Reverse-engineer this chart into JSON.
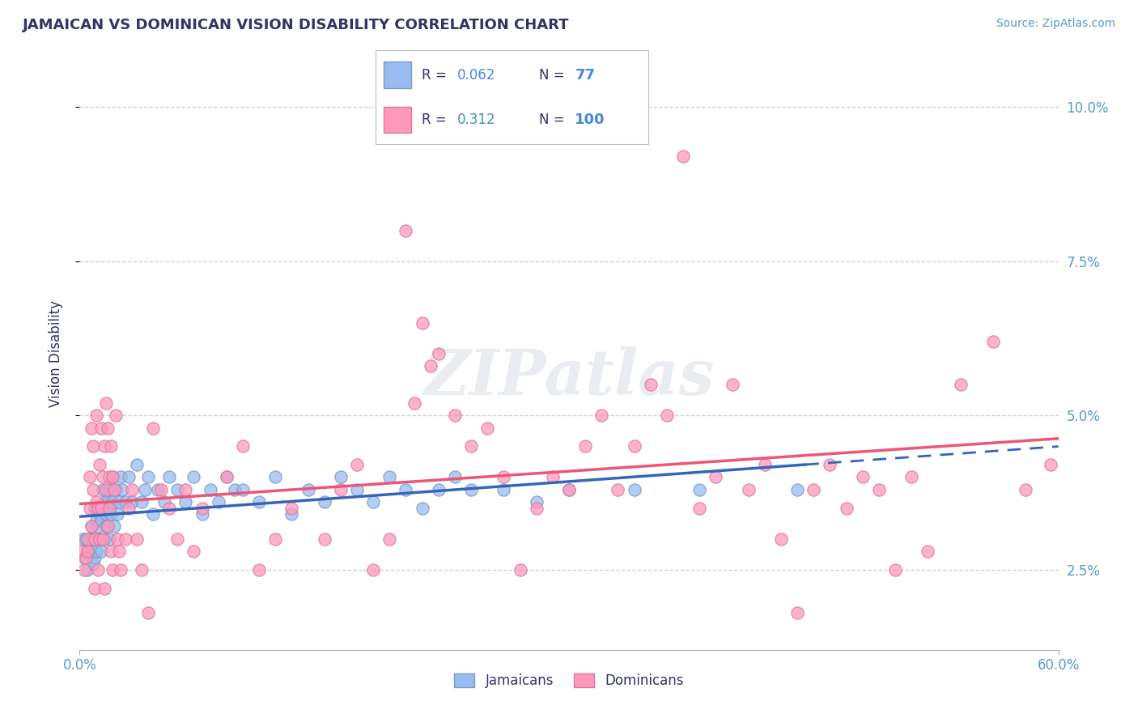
{
  "title": "JAMAICAN VS DOMINICAN VISION DISABILITY CORRELATION CHART",
  "source": "Source: ZipAtlas.com",
  "ylabel": "Vision Disability",
  "xlim": [
    0.0,
    0.6
  ],
  "ylim": [
    0.012,
    0.108
  ],
  "xtick_labels_edge": [
    "0.0%",
    "60.0%"
  ],
  "xtick_vals_edge": [
    0.0,
    0.6
  ],
  "ytick_labels": [
    "2.5%",
    "5.0%",
    "7.5%",
    "10.0%"
  ],
  "ytick_vals": [
    0.025,
    0.05,
    0.075,
    0.1
  ],
  "jamaican_color": "#99BBEE",
  "dominican_color": "#FF99BB",
  "jamaican_trend_color": "#3366BB",
  "dominican_trend_color": "#EE5577",
  "title_color": "#333366",
  "axis_label_color": "#5599CC",
  "watermark": "ZIPatlas",
  "background_color": "#FFFFFF",
  "grid_color": "#CCCCDD",
  "jamaican_scatter": [
    [
      0.002,
      0.03
    ],
    [
      0.003,
      0.027
    ],
    [
      0.004,
      0.03
    ],
    [
      0.005,
      0.028
    ],
    [
      0.005,
      0.025
    ],
    [
      0.006,
      0.03
    ],
    [
      0.006,
      0.028
    ],
    [
      0.007,
      0.032
    ],
    [
      0.007,
      0.028
    ],
    [
      0.008,
      0.026
    ],
    [
      0.008,
      0.03
    ],
    [
      0.009,
      0.035
    ],
    [
      0.009,
      0.027
    ],
    [
      0.01,
      0.033
    ],
    [
      0.01,
      0.028
    ],
    [
      0.011,
      0.032
    ],
    [
      0.012,
      0.03
    ],
    [
      0.012,
      0.034
    ],
    [
      0.013,
      0.028
    ],
    [
      0.013,
      0.033
    ],
    [
      0.014,
      0.038
    ],
    [
      0.015,
      0.03
    ],
    [
      0.015,
      0.036
    ],
    [
      0.016,
      0.034
    ],
    [
      0.016,
      0.032
    ],
    [
      0.017,
      0.036
    ],
    [
      0.018,
      0.03
    ],
    [
      0.018,
      0.038
    ],
    [
      0.019,
      0.034
    ],
    [
      0.02,
      0.036
    ],
    [
      0.02,
      0.04
    ],
    [
      0.021,
      0.032
    ],
    [
      0.022,
      0.038
    ],
    [
      0.023,
      0.034
    ],
    [
      0.024,
      0.036
    ],
    [
      0.025,
      0.04
    ],
    [
      0.026,
      0.038
    ],
    [
      0.028,
      0.036
    ],
    [
      0.03,
      0.04
    ],
    [
      0.032,
      0.036
    ],
    [
      0.035,
      0.042
    ],
    [
      0.038,
      0.036
    ],
    [
      0.04,
      0.038
    ],
    [
      0.042,
      0.04
    ],
    [
      0.045,
      0.034
    ],
    [
      0.048,
      0.038
    ],
    [
      0.052,
      0.036
    ],
    [
      0.055,
      0.04
    ],
    [
      0.06,
      0.038
    ],
    [
      0.065,
      0.036
    ],
    [
      0.07,
      0.04
    ],
    [
      0.075,
      0.034
    ],
    [
      0.08,
      0.038
    ],
    [
      0.085,
      0.036
    ],
    [
      0.09,
      0.04
    ],
    [
      0.095,
      0.038
    ],
    [
      0.1,
      0.038
    ],
    [
      0.11,
      0.036
    ],
    [
      0.12,
      0.04
    ],
    [
      0.13,
      0.034
    ],
    [
      0.14,
      0.038
    ],
    [
      0.15,
      0.036
    ],
    [
      0.16,
      0.04
    ],
    [
      0.17,
      0.038
    ],
    [
      0.18,
      0.036
    ],
    [
      0.19,
      0.04
    ],
    [
      0.2,
      0.038
    ],
    [
      0.21,
      0.035
    ],
    [
      0.22,
      0.038
    ],
    [
      0.23,
      0.04
    ],
    [
      0.24,
      0.038
    ],
    [
      0.26,
      0.038
    ],
    [
      0.28,
      0.036
    ],
    [
      0.3,
      0.038
    ],
    [
      0.34,
      0.038
    ],
    [
      0.38,
      0.038
    ],
    [
      0.44,
      0.038
    ]
  ],
  "dominican_scatter": [
    [
      0.002,
      0.028
    ],
    [
      0.003,
      0.025
    ],
    [
      0.004,
      0.027
    ],
    [
      0.005,
      0.028
    ],
    [
      0.005,
      0.03
    ],
    [
      0.006,
      0.04
    ],
    [
      0.006,
      0.035
    ],
    [
      0.007,
      0.048
    ],
    [
      0.007,
      0.032
    ],
    [
      0.008,
      0.038
    ],
    [
      0.008,
      0.045
    ],
    [
      0.009,
      0.03
    ],
    [
      0.009,
      0.022
    ],
    [
      0.01,
      0.036
    ],
    [
      0.01,
      0.05
    ],
    [
      0.011,
      0.035
    ],
    [
      0.011,
      0.025
    ],
    [
      0.012,
      0.042
    ],
    [
      0.012,
      0.03
    ],
    [
      0.013,
      0.048
    ],
    [
      0.013,
      0.035
    ],
    [
      0.014,
      0.04
    ],
    [
      0.014,
      0.03
    ],
    [
      0.015,
      0.045
    ],
    [
      0.015,
      0.022
    ],
    [
      0.016,
      0.052
    ],
    [
      0.016,
      0.038
    ],
    [
      0.017,
      0.032
    ],
    [
      0.017,
      0.048
    ],
    [
      0.018,
      0.04
    ],
    [
      0.018,
      0.035
    ],
    [
      0.019,
      0.028
    ],
    [
      0.019,
      0.045
    ],
    [
      0.02,
      0.04
    ],
    [
      0.02,
      0.025
    ],
    [
      0.021,
      0.038
    ],
    [
      0.022,
      0.05
    ],
    [
      0.023,
      0.03
    ],
    [
      0.024,
      0.028
    ],
    [
      0.025,
      0.025
    ],
    [
      0.028,
      0.03
    ],
    [
      0.03,
      0.035
    ],
    [
      0.032,
      0.038
    ],
    [
      0.035,
      0.03
    ],
    [
      0.038,
      0.025
    ],
    [
      0.042,
      0.018
    ],
    [
      0.045,
      0.048
    ],
    [
      0.05,
      0.038
    ],
    [
      0.055,
      0.035
    ],
    [
      0.06,
      0.03
    ],
    [
      0.065,
      0.038
    ],
    [
      0.07,
      0.028
    ],
    [
      0.075,
      0.035
    ],
    [
      0.09,
      0.04
    ],
    [
      0.1,
      0.045
    ],
    [
      0.11,
      0.025
    ],
    [
      0.12,
      0.03
    ],
    [
      0.13,
      0.035
    ],
    [
      0.15,
      0.03
    ],
    [
      0.16,
      0.038
    ],
    [
      0.17,
      0.042
    ],
    [
      0.18,
      0.025
    ],
    [
      0.19,
      0.03
    ],
    [
      0.2,
      0.08
    ],
    [
      0.205,
      0.052
    ],
    [
      0.21,
      0.065
    ],
    [
      0.215,
      0.058
    ],
    [
      0.22,
      0.06
    ],
    [
      0.23,
      0.05
    ],
    [
      0.24,
      0.045
    ],
    [
      0.25,
      0.048
    ],
    [
      0.26,
      0.04
    ],
    [
      0.27,
      0.025
    ],
    [
      0.28,
      0.035
    ],
    [
      0.29,
      0.04
    ],
    [
      0.3,
      0.038
    ],
    [
      0.31,
      0.045
    ],
    [
      0.32,
      0.05
    ],
    [
      0.33,
      0.038
    ],
    [
      0.34,
      0.045
    ],
    [
      0.35,
      0.055
    ],
    [
      0.36,
      0.05
    ],
    [
      0.37,
      0.092
    ],
    [
      0.38,
      0.035
    ],
    [
      0.39,
      0.04
    ],
    [
      0.4,
      0.055
    ],
    [
      0.41,
      0.038
    ],
    [
      0.42,
      0.042
    ],
    [
      0.43,
      0.03
    ],
    [
      0.44,
      0.018
    ],
    [
      0.45,
      0.038
    ],
    [
      0.46,
      0.042
    ],
    [
      0.47,
      0.035
    ],
    [
      0.48,
      0.04
    ],
    [
      0.49,
      0.038
    ],
    [
      0.5,
      0.025
    ],
    [
      0.51,
      0.04
    ],
    [
      0.52,
      0.028
    ],
    [
      0.54,
      0.055
    ],
    [
      0.56,
      0.062
    ],
    [
      0.58,
      0.038
    ],
    [
      0.595,
      0.042
    ]
  ],
  "jam_line_solid_end": 0.445,
  "dom_line_start_y": 0.028,
  "dom_line_end_y": 0.046
}
